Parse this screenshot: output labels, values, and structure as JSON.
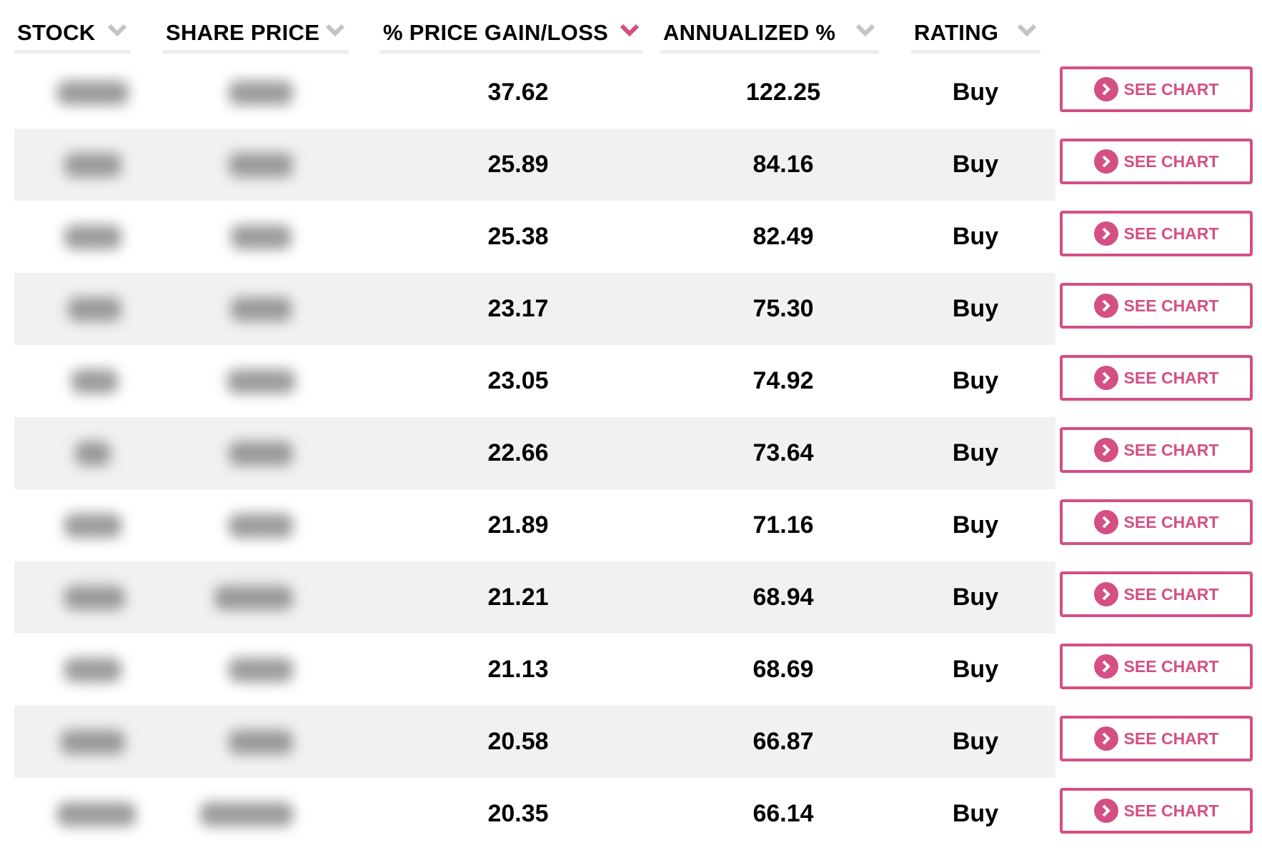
{
  "accent_color": "#d44f83",
  "headers": [
    {
      "label": "STOCK",
      "sort_icon": "chevron-down-icon",
      "active": false
    },
    {
      "label": "SHARE PRICE",
      "sort_icon": "chevron-down-icon",
      "active": false
    },
    {
      "label": "% PRICE GAIN/LOSS",
      "sort_icon": "chevron-down-icon",
      "active": true
    },
    {
      "label": "ANNUALIZED %",
      "sort_icon": "chevron-down-icon",
      "active": false
    },
    {
      "label": "RATING",
      "sort_icon": "chevron-down-icon",
      "active": false
    }
  ],
  "button_label": "SEE CHART",
  "button_icon": "chevron-right-circle-icon",
  "rows": [
    {
      "gain": "37.62",
      "annualized": "122.25",
      "rating": "Buy"
    },
    {
      "gain": "25.89",
      "annualized": "84.16",
      "rating": "Buy"
    },
    {
      "gain": "25.38",
      "annualized": "82.49",
      "rating": "Buy"
    },
    {
      "gain": "23.17",
      "annualized": "75.30",
      "rating": "Buy"
    },
    {
      "gain": "23.05",
      "annualized": "74.92",
      "rating": "Buy"
    },
    {
      "gain": "22.66",
      "annualized": "73.64",
      "rating": "Buy"
    },
    {
      "gain": "21.89",
      "annualized": "71.16",
      "rating": "Buy"
    },
    {
      "gain": "21.21",
      "annualized": "68.94",
      "rating": "Buy"
    },
    {
      "gain": "21.13",
      "annualized": "68.69",
      "rating": "Buy"
    },
    {
      "gain": "20.58",
      "annualized": "66.87",
      "rating": "Buy"
    },
    {
      "gain": "20.35",
      "annualized": "66.14",
      "rating": "Buy"
    }
  ]
}
